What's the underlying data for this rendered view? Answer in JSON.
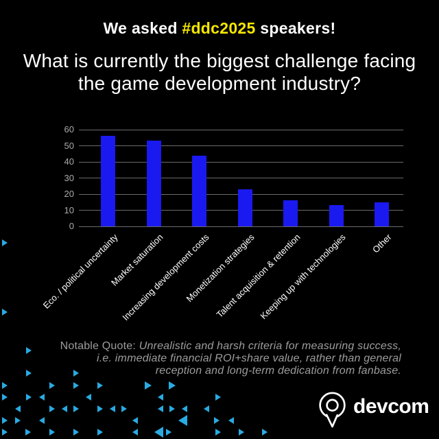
{
  "header": {
    "prefix": "We asked ",
    "hashtag": "#ddc2025",
    "suffix": " speakers!"
  },
  "title": {
    "line1": "What is currently the biggest challenge facing",
    "line2": "the game development industry?"
  },
  "chart_data": {
    "type": "bar",
    "categories": [
      "Eco. / political uncertainty",
      "Market saturation",
      "Increasing development costs",
      "Monetization strategies",
      "Talent acquisition & retention",
      "Keeping up with technologies",
      "Other"
    ],
    "values": [
      56,
      53,
      44,
      23,
      16,
      13,
      15
    ],
    "title": "",
    "xlabel": "",
    "ylabel": "",
    "ylim": [
      0,
      60
    ],
    "ytick_step": 10,
    "grid": true,
    "legend": false,
    "bar_color": "#1a1af0",
    "gridline_color": "#6b6b6b",
    "tick_label_color": "#ababab",
    "category_label_color": "#ffffff"
  },
  "quote": {
    "label": "Notable Quote:",
    "lines": [
      "Unrealistic and harsh criteria for measuring success,",
      "i.e. immediate financial ROI+share value, rather than general",
      "reception and long-term dedication from fanbase."
    ]
  },
  "logo": {
    "text": "devcom"
  },
  "colors": {
    "background": "#000000",
    "accent_yellow": "#f7e700",
    "triangle_cyan": "#29abe2",
    "text_white": "#ffffff",
    "quote_gray": "#9d9d9d"
  }
}
